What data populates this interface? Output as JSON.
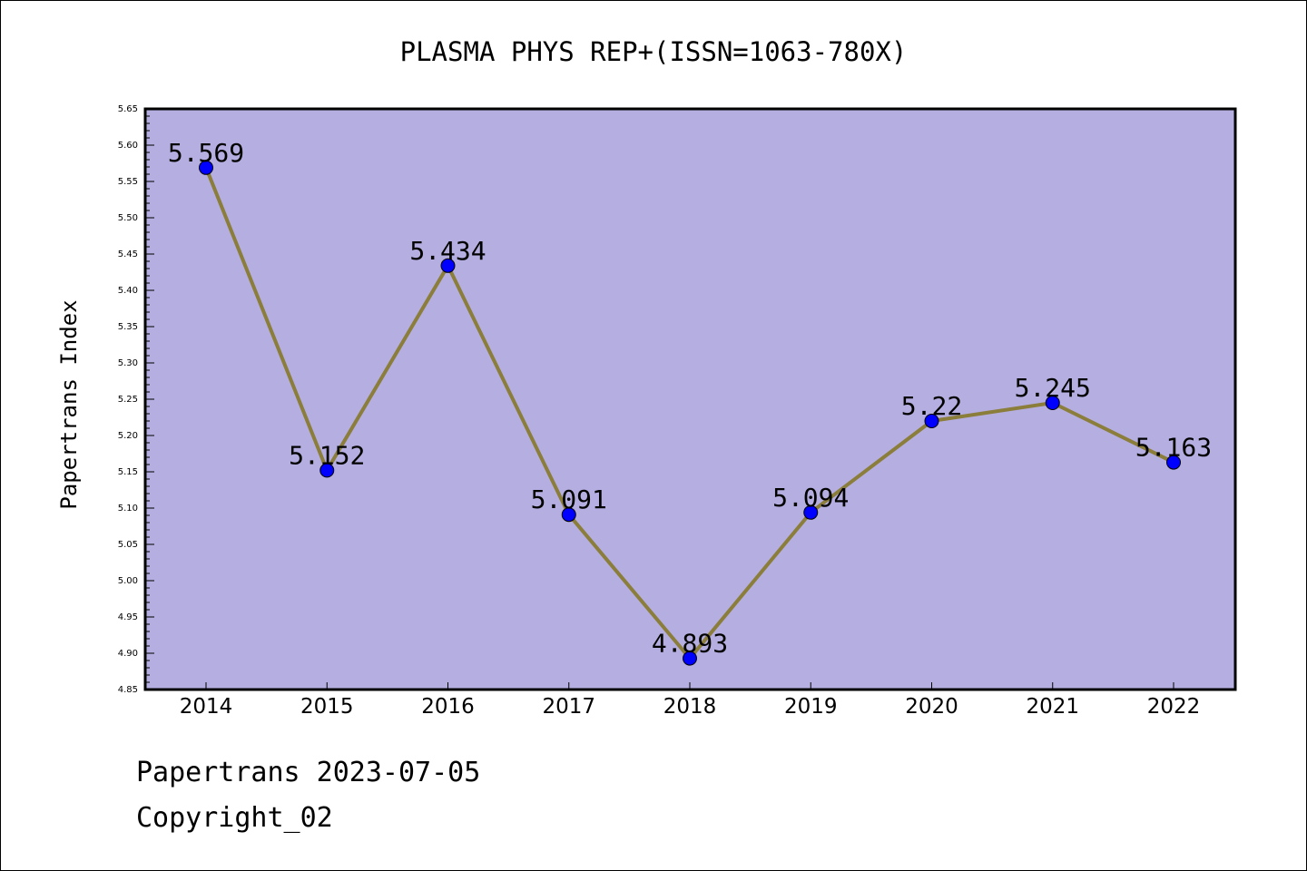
{
  "chart_data": {
    "type": "line",
    "title": "PLASMA PHYS REP+(ISSN=1063-780X)",
    "xlabel": "",
    "ylabel": "Papertrans Index",
    "x": [
      "2014",
      "2015",
      "2016",
      "2017",
      "2018",
      "2019",
      "2020",
      "2021",
      "2022"
    ],
    "series": [
      {
        "values": [
          5.569,
          5.152,
          5.434,
          5.091,
          4.893,
          5.094,
          5.22,
          5.245,
          5.163
        ],
        "labels": [
          "5.569",
          "5.152",
          "5.434",
          "5.091",
          "4.893",
          "5.094",
          "5.22",
          "5.245",
          "5.163"
        ],
        "line_color": "#8b7d3a",
        "marker_color": "#0000ff"
      }
    ],
    "ylim": [
      4.85,
      5.65
    ],
    "yticks": [
      "4.85",
      "4.90",
      "4.95",
      "5.00",
      "5.05",
      "5.10",
      "5.15",
      "5.20",
      "5.25",
      "5.30",
      "5.35",
      "5.40",
      "5.45",
      "5.50",
      "5.55",
      "5.60",
      "5.65"
    ],
    "plot_background": "#b5aee1",
    "grid": false,
    "legend": "none"
  },
  "footer": {
    "line1": "Papertrans 2023-07-05",
    "line2": "Copyright_02"
  }
}
